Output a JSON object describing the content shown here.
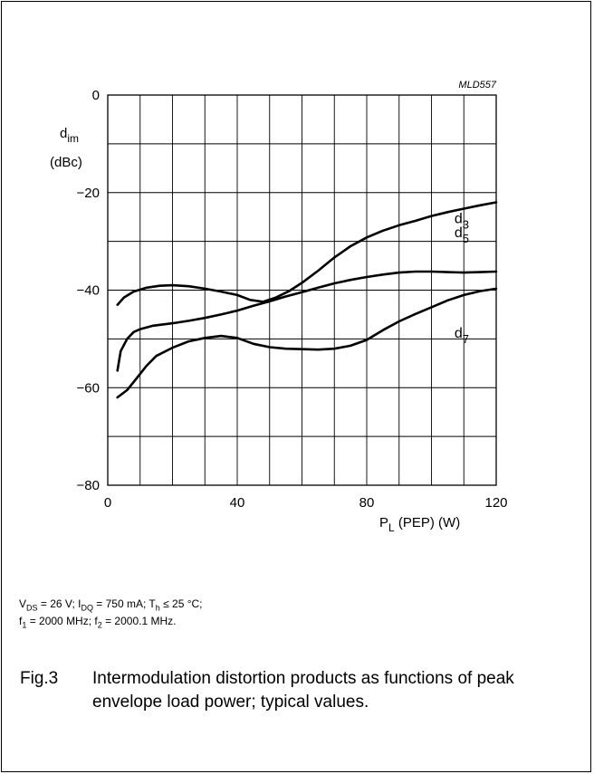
{
  "figure_code": "MLD557",
  "conditions": {
    "line1_parts": [
      "V",
      "DS",
      " = 26 V; I",
      "DQ",
      " = 750 mA; T",
      "h",
      " ≤ 25 °C;"
    ],
    "line2_parts": [
      "f",
      "1",
      " = 2000 MHz; f",
      "2",
      " = 2000.1 MHz."
    ]
  },
  "caption": {
    "number": "Fig.3",
    "text": "Intermodulation distortion products as functions of peak envelope load power; typical values."
  },
  "chart_data": {
    "type": "line",
    "xlabel": {
      "main": "P",
      "sub": "L",
      "rest": " (PEP) (W)"
    },
    "ylabel": {
      "main": "d",
      "sub": "im",
      "unit": "(dBc)"
    },
    "xlim": [
      0,
      120
    ],
    "ylim": [
      -80,
      0
    ],
    "x_ticks": [
      0,
      40,
      80,
      120
    ],
    "y_ticks": [
      0,
      -20,
      -40,
      -60,
      -80
    ],
    "x_tick_labels": [
      "0",
      "40",
      "80",
      "120"
    ],
    "y_tick_labels": [
      "0",
      "−20",
      "−40",
      "−60",
      "−80"
    ],
    "grid": {
      "x_step": 10,
      "y_step": 10
    },
    "series": [
      {
        "name": "d3",
        "label_main": "d",
        "label_sub": "3",
        "x": [
          3,
          5,
          8,
          12,
          16,
          20,
          25,
          30,
          35,
          40,
          44,
          48,
          52,
          56,
          60,
          65,
          70,
          75,
          80,
          85,
          90,
          95,
          100,
          105,
          110,
          115,
          120
        ],
        "y": [
          -43,
          -41.5,
          -40.3,
          -39.5,
          -39.1,
          -39,
          -39.2,
          -39.7,
          -40.3,
          -41,
          -42,
          -42.4,
          -41.5,
          -40.2,
          -38.5,
          -36,
          -33.3,
          -31,
          -29.2,
          -27.8,
          -26.7,
          -25.8,
          -24.8,
          -24,
          -23.3,
          -22.6,
          -22
        ]
      },
      {
        "name": "d5",
        "label_main": "d",
        "label_sub": "5",
        "x": [
          3,
          4,
          6,
          8,
          10,
          14,
          20,
          25,
          30,
          35,
          40,
          45,
          50,
          55,
          60,
          65,
          70,
          75,
          80,
          85,
          90,
          95,
          100,
          105,
          110,
          115,
          120
        ],
        "y": [
          -56.5,
          -52.5,
          -50,
          -48.6,
          -48,
          -47.3,
          -46.8,
          -46.3,
          -45.7,
          -45,
          -44.2,
          -43.2,
          -42.3,
          -41.3,
          -40.4,
          -39.5,
          -38.6,
          -37.9,
          -37.3,
          -36.8,
          -36.4,
          -36.2,
          -36.2,
          -36.3,
          -36.4,
          -36.3,
          -36.2
        ]
      },
      {
        "name": "d7",
        "label_main": "d",
        "label_sub": "7",
        "x": [
          3,
          6,
          9,
          12,
          15,
          20,
          25,
          30,
          35,
          40,
          45,
          50,
          55,
          60,
          65,
          70,
          75,
          80,
          85,
          90,
          95,
          100,
          105,
          110,
          115,
          120
        ],
        "y": [
          -62,
          -60.5,
          -58,
          -55.5,
          -53.5,
          -51.8,
          -50.5,
          -49.8,
          -49.4,
          -49.8,
          -51,
          -51.7,
          -52,
          -52.1,
          -52.2,
          -52,
          -51.4,
          -50.2,
          -48.2,
          -46.4,
          -44.9,
          -43.5,
          -42.1,
          -41,
          -40.2,
          -39.7
        ]
      }
    ]
  }
}
